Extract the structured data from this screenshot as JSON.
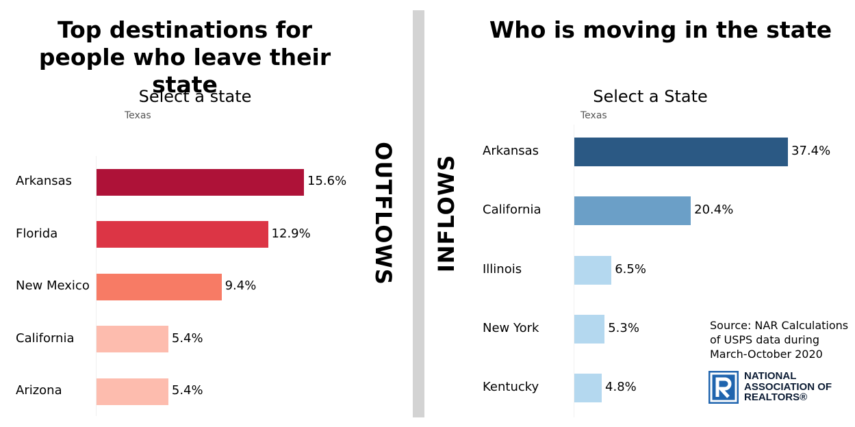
{
  "outflows": {
    "title": "Top destinations for people who leave their state",
    "select_label": "Select a state",
    "select_value": "Texas",
    "side_label": "OUTFLOWS"
  },
  "inflows": {
    "title": "Who is moving in the state",
    "select_label": "Select a State",
    "select_value": "Texas",
    "side_label": "INFLOWS"
  },
  "source_lines": [
    "Source: NAR Calculations",
    "of USPS data during",
    "March-October 2020"
  ],
  "logo": {
    "name": "NATIONAL ASSOCIATION OF REALTORS®",
    "icon": "realtor-r-logo-icon",
    "color": "#1f64ae"
  },
  "chart_data": [
    {
      "type": "bar",
      "orientation": "horizontal",
      "title": "Top destinations for people who leave their state",
      "categories": [
        "Arkansas",
        "Florida",
        "New Mexico",
        "California",
        "Arizona"
      ],
      "values": [
        15.6,
        12.9,
        9.4,
        5.4,
        5.4
      ],
      "value_labels": [
        "15.6%",
        "12.9%",
        "9.4%",
        "5.4%",
        "5.4%"
      ],
      "colors": [
        "#ae1238",
        "#dc3545",
        "#f77b65",
        "#fdbcae",
        "#fdbcae"
      ],
      "xlim": [
        0,
        25
      ],
      "grid": false,
      "legend": "none"
    },
    {
      "type": "bar",
      "orientation": "horizontal",
      "title": "Who is moving in the state",
      "categories": [
        "Arkansas",
        "California",
        "Illinois",
        "New York",
        "Kentucky"
      ],
      "values": [
        37.4,
        20.4,
        6.5,
        5.3,
        4.8
      ],
      "value_labels": [
        "37.4%",
        "20.4%",
        "6.5%",
        "5.3%",
        "4.8%"
      ],
      "colors": [
        "#2b5984",
        "#6b9fc7",
        "#b4d8ef",
        "#b4d8ef",
        "#b4d8ef"
      ],
      "xlim": [
        0,
        45
      ],
      "grid": false,
      "legend": "none"
    }
  ]
}
